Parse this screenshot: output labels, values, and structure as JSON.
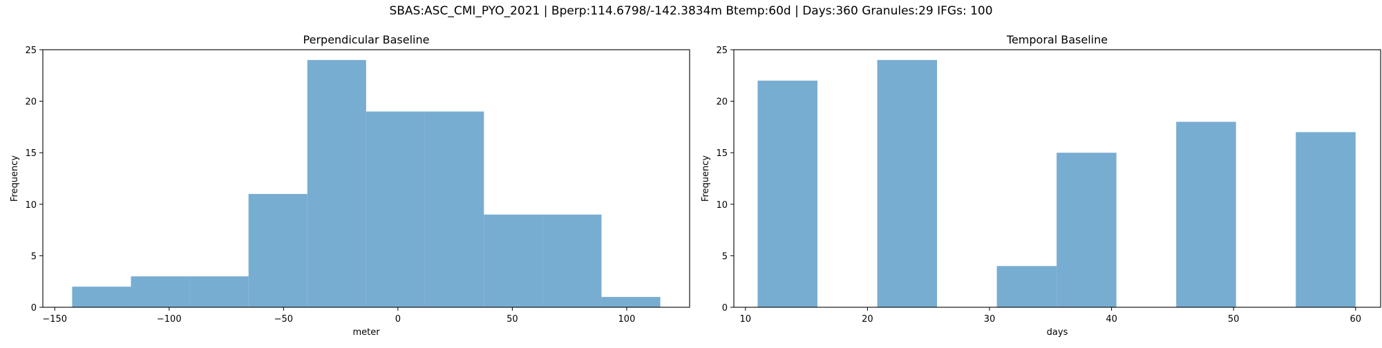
{
  "figure": {
    "title": "SBAS:ASC_CMI_PYO_2021 | Bperp:114.6798/-142.3834m Btemp:60d | Days:360 Granules:29 IFGs: 100"
  },
  "chart_data": [
    {
      "type": "bar",
      "title": "Perpendicular Baseline",
      "xlabel": "meter",
      "ylabel": "Frequency",
      "xlim": [
        -155.2,
        127.5
      ],
      "ylim": [
        0,
        25
      ],
      "xticks": [
        -150,
        -100,
        -50,
        0,
        50,
        100
      ],
      "xtick_labels": [
        "−150",
        "−100",
        "−50",
        "0",
        "50",
        "100"
      ],
      "yticks": [
        0,
        5,
        10,
        15,
        20,
        25
      ],
      "ytick_labels": [
        "0",
        "5",
        "10",
        "15",
        "20",
        "25"
      ],
      "bin_edges": [
        -142.4,
        -116.7,
        -91.0,
        -65.3,
        -39.6,
        -13.9,
        11.8,
        37.6,
        63.3,
        89.0,
        114.7
      ],
      "values": [
        2,
        3,
        3,
        11,
        24,
        19,
        19,
        9,
        9,
        1
      ],
      "color": "#78add2",
      "grid": false,
      "legend": "none"
    },
    {
      "type": "bar",
      "title": "Temporal Baseline",
      "xlabel": "days",
      "ylabel": "Frequency",
      "xlim": [
        9.05,
        62.05
      ],
      "ylim": [
        0,
        25
      ],
      "xticks": [
        10,
        20,
        30,
        40,
        50,
        60
      ],
      "xtick_labels": [
        "10",
        "20",
        "30",
        "40",
        "50",
        "60"
      ],
      "yticks": [
        0,
        5,
        10,
        15,
        20,
        25
      ],
      "ytick_labels": [
        "0",
        "5",
        "10",
        "15",
        "20",
        "25"
      ],
      "bin_edges": [
        11,
        15.9,
        20.8,
        25.7,
        30.6,
        35.5,
        40.4,
        45.3,
        50.2,
        55.1,
        60
      ],
      "values": [
        22,
        0,
        24,
        0,
        4,
        15,
        0,
        18,
        0,
        17
      ],
      "color": "#78add2",
      "grid": false,
      "legend": "none"
    }
  ]
}
